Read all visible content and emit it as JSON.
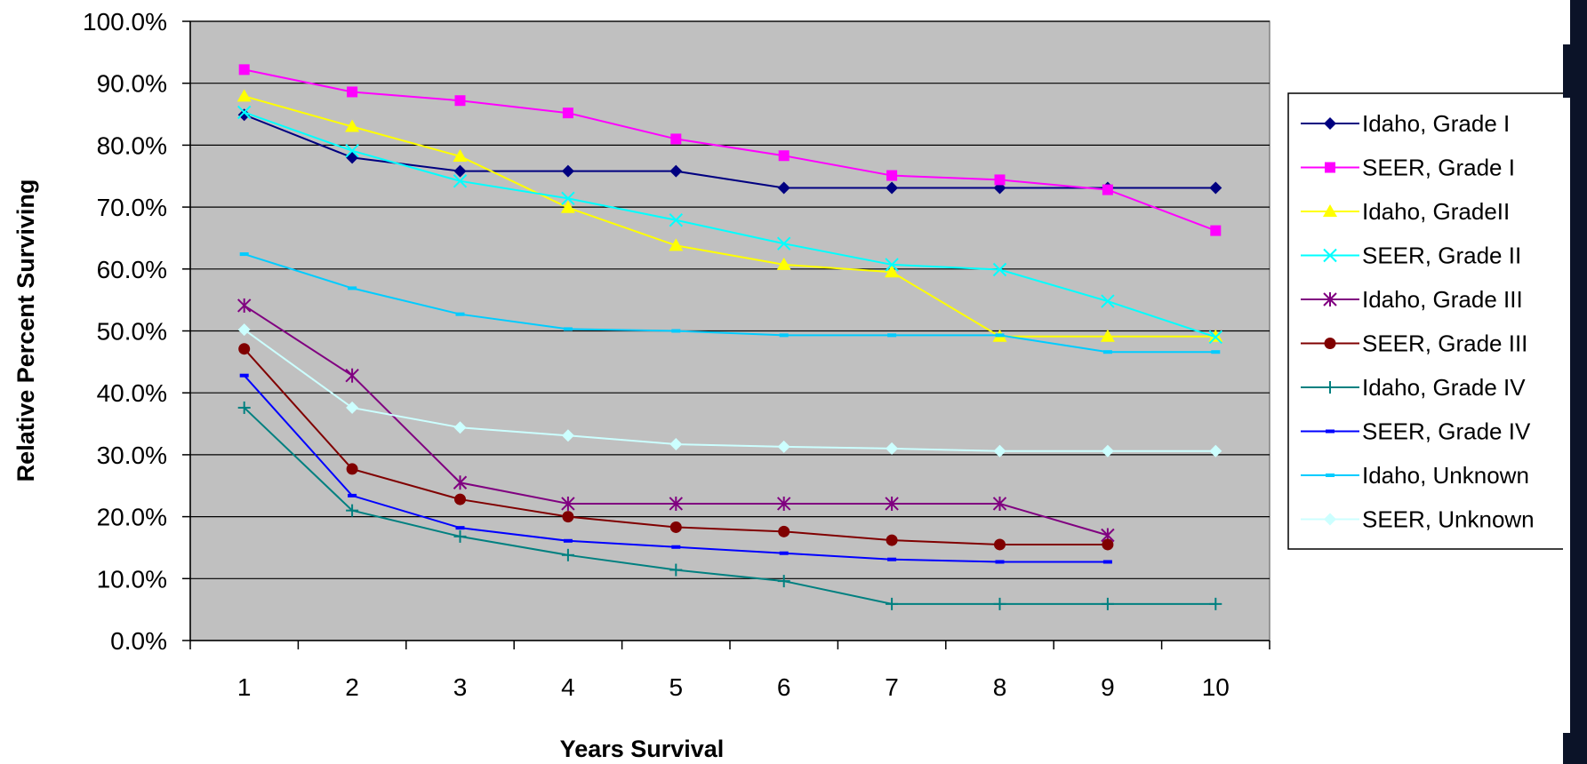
{
  "chart_data": {
    "type": "line",
    "xlabel": "Years Survival",
    "ylabel": "Relative Percent Surviving",
    "x": [
      1,
      2,
      3,
      4,
      5,
      6,
      7,
      8,
      9,
      10
    ],
    "ylim": [
      0,
      100
    ],
    "yticks": [
      "0.0%",
      "10.0%",
      "20.0%",
      "30.0%",
      "40.0%",
      "50.0%",
      "60.0%",
      "70.0%",
      "80.0%",
      "90.0%",
      "100.0%"
    ],
    "grid": true,
    "legend_position": "right",
    "plot_background": "#c0c0c0",
    "series": [
      {
        "name": "Idaho, Grade I",
        "color": "#000080",
        "marker": "diamond",
        "values": [
          84.9,
          78.0,
          75.8,
          75.8,
          75.8,
          73.1,
          73.1,
          73.1,
          73.1,
          73.1
        ]
      },
      {
        "name": "SEER, Grade I",
        "color": "#ff00ff",
        "marker": "square",
        "values": [
          92.2,
          88.6,
          87.2,
          85.2,
          81.0,
          78.3,
          75.1,
          74.4,
          72.8,
          66.2
        ]
      },
      {
        "name": "Idaho, GradeII",
        "color": "#ffff00",
        "marker": "triangle",
        "values": [
          87.9,
          83.0,
          78.2,
          69.9,
          63.8,
          60.7,
          59.5,
          49.1,
          49.1,
          49.1
        ]
      },
      {
        "name": "SEER, Grade II",
        "color": "#00ffff",
        "marker": "x",
        "values": [
          85.3,
          79.1,
          74.2,
          71.4,
          67.9,
          64.1,
          60.7,
          59.9,
          54.8,
          49.0
        ]
      },
      {
        "name": "Idaho, Grade III",
        "color": "#800080",
        "marker": "star",
        "values": [
          54.1,
          42.8,
          25.5,
          22.1,
          22.1,
          22.1,
          22.1,
          22.1,
          17.0,
          null
        ]
      },
      {
        "name": "SEER, Grade III",
        "color": "#800000",
        "marker": "circle",
        "values": [
          47.1,
          27.7,
          22.8,
          20.0,
          18.3,
          17.6,
          16.2,
          15.5,
          15.5,
          null
        ]
      },
      {
        "name": "Idaho, Grade IV",
        "color": "#008080",
        "marker": "plus",
        "values": [
          37.6,
          21.0,
          16.8,
          13.8,
          11.4,
          9.6,
          5.9,
          5.9,
          5.9,
          5.9
        ]
      },
      {
        "name": "SEER, Grade IV",
        "color": "#0000ff",
        "marker": "dash",
        "values": [
          42.8,
          23.4,
          18.2,
          16.1,
          15.1,
          14.1,
          13.1,
          12.7,
          12.7,
          null
        ]
      },
      {
        "name": "Idaho, Unknown",
        "color": "#00ccff",
        "marker": "dash",
        "values": [
          62.4,
          56.9,
          52.7,
          50.3,
          50.0,
          49.3,
          49.3,
          49.3,
          46.6,
          46.6
        ]
      },
      {
        "name": "SEER, Unknown",
        "color": "#ccffff",
        "marker": "diamond",
        "values": [
          50.2,
          37.6,
          34.4,
          33.1,
          31.7,
          31.3,
          31.0,
          30.6,
          30.6,
          30.6
        ]
      }
    ]
  }
}
